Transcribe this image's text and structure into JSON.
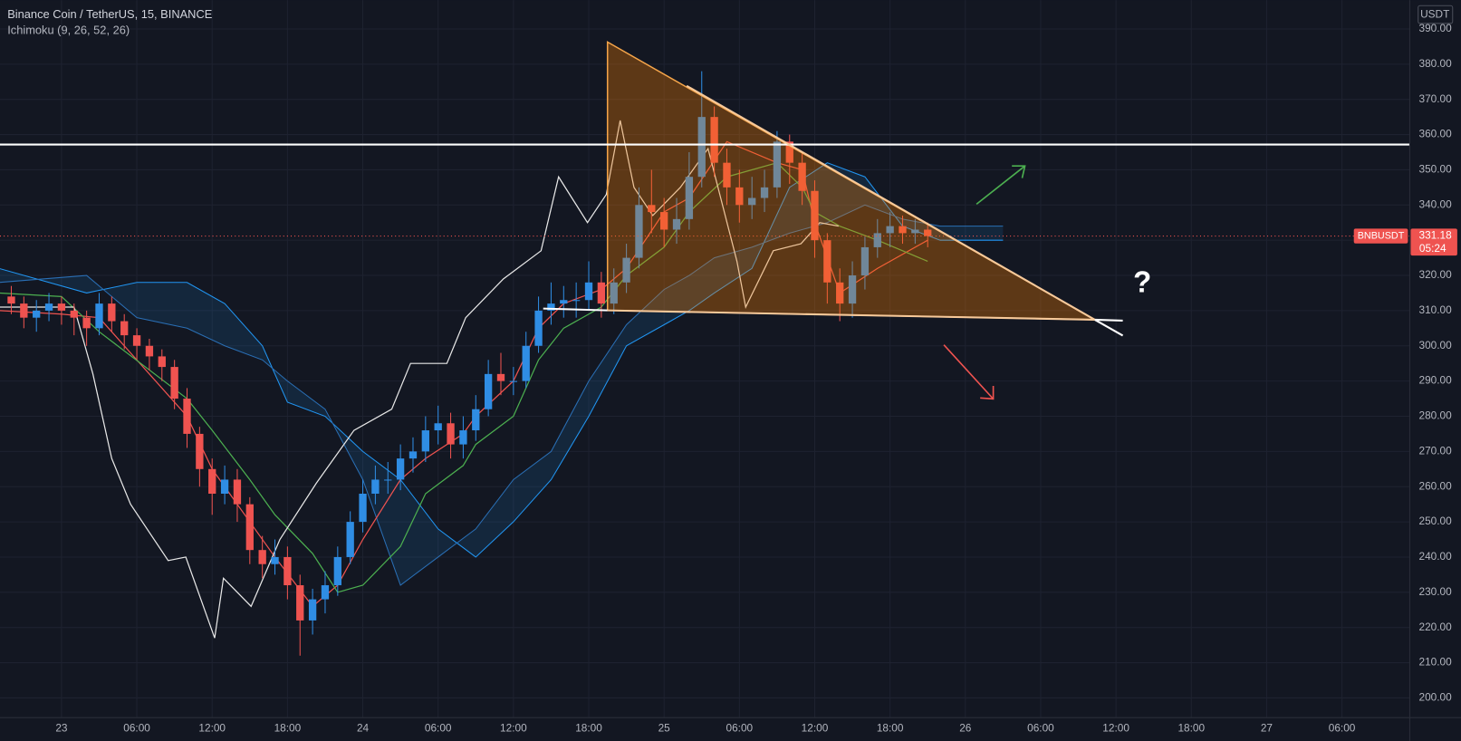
{
  "chart_data": {
    "type": "candlestick",
    "title": "Binance Coin / TetherUS, 15, BINANCE",
    "subtitle": "Ichimoku (9, 26, 52, 26)",
    "currency": "USDT",
    "symbol": "BNBUSDT",
    "countdown": "05:24",
    "question": "?",
    "last_price": 331.18,
    "last_price_color": "#ef5350",
    "up_color": "#2f8de4",
    "down_color": "#ef5350",
    "grid": true,
    "xlim": [
      -4.9,
      107.4
    ],
    "ylim": [
      194.4,
      398.2
    ],
    "xticks": [
      {
        "value": 0,
        "label": "23"
      },
      {
        "value": 6,
        "label": "06:00"
      },
      {
        "value": 12,
        "label": "12:00"
      },
      {
        "value": 18,
        "label": "18:00"
      },
      {
        "value": 24,
        "label": "24"
      },
      {
        "value": 30,
        "label": "06:00"
      },
      {
        "value": 36,
        "label": "12:00"
      },
      {
        "value": 42,
        "label": "18:00"
      },
      {
        "value": 48,
        "label": "25"
      },
      {
        "value": 54,
        "label": "06:00"
      },
      {
        "value": 60,
        "label": "12:00"
      },
      {
        "value": 66,
        "label": "18:00"
      },
      {
        "value": 72,
        "label": "26"
      },
      {
        "value": 78,
        "label": "06:00"
      },
      {
        "value": 84,
        "label": "12:00"
      },
      {
        "value": 90,
        "label": "18:00"
      },
      {
        "value": 96,
        "label": "27"
      },
      {
        "value": 102,
        "label": "06:00"
      }
    ],
    "yticks": [
      {
        "value": 200,
        "label": "200.00"
      },
      {
        "value": 210,
        "label": "210.00"
      },
      {
        "value": 220,
        "label": "220.00"
      },
      {
        "value": 230,
        "label": "230.00"
      },
      {
        "value": 240,
        "label": "240.00"
      },
      {
        "value": 250,
        "label": "250.00"
      },
      {
        "value": 260,
        "label": "260.00"
      },
      {
        "value": 270,
        "label": "270.00"
      },
      {
        "value": 280,
        "label": "280.00"
      },
      {
        "value": 290,
        "label": "290.00"
      },
      {
        "value": 300,
        "label": "300.00"
      },
      {
        "value": 310,
        "label": "310.00"
      },
      {
        "value": 320,
        "label": "320.00"
      },
      {
        "value": 330,
        "label": "330.00"
      },
      {
        "value": 340,
        "label": "340.00"
      },
      {
        "value": 350,
        "label": "350.00"
      },
      {
        "value": 360,
        "label": "360.00"
      },
      {
        "value": 370,
        "label": "370.00"
      },
      {
        "value": 380,
        "label": "380.00"
      },
      {
        "value": 390,
        "label": "390.00"
      }
    ],
    "candles": {
      "x": [
        -4,
        -3,
        -2,
        -1,
        0,
        1,
        2,
        3,
        4,
        5,
        6,
        7,
        8,
        9,
        10,
        11,
        12,
        13,
        14,
        15,
        16,
        17,
        18,
        19,
        20,
        21,
        22,
        23,
        24,
        25,
        26,
        27,
        28,
        29,
        30,
        31,
        32,
        33,
        34,
        35,
        36,
        37,
        38,
        39,
        40,
        41,
        42,
        43,
        44,
        45,
        46,
        47,
        48,
        49,
        50,
        51,
        52,
        53,
        54,
        55,
        56,
        57,
        58,
        59,
        60,
        61,
        62,
        63,
        64,
        65,
        66,
        67,
        68,
        69
      ],
      "open": [
        314,
        312,
        308,
        310,
        312,
        310,
        308,
        305,
        312,
        307,
        303,
        300,
        297,
        294,
        285,
        275,
        265,
        258,
        262,
        255,
        242,
        238,
        240,
        232,
        222,
        228,
        232,
        240,
        250,
        258,
        262,
        262,
        268,
        270,
        276,
        278,
        272,
        276,
        282,
        292,
        290,
        290,
        300,
        310,
        312,
        313,
        313,
        318,
        312,
        318,
        325,
        340,
        338,
        333,
        336,
        348,
        365,
        352,
        345,
        340,
        342,
        345,
        358,
        352,
        344,
        330,
        318,
        312,
        320,
        328,
        332,
        334,
        332,
        333
      ],
      "high": [
        317,
        314,
        313,
        315,
        314,
        312,
        310,
        315,
        314,
        309,
        305,
        302,
        299,
        296,
        288,
        277,
        268,
        266,
        265,
        257,
        246,
        245,
        243,
        235,
        231,
        236,
        243,
        253,
        262,
        266,
        267,
        272,
        274,
        280,
        283,
        281,
        280,
        286,
        296,
        298,
        294,
        304,
        314,
        318,
        317,
        318,
        324,
        321,
        322,
        329,
        345,
        350,
        342,
        342,
        355,
        378,
        368,
        356,
        350,
        348,
        350,
        361,
        360,
        355,
        347,
        332,
        322,
        324,
        331,
        336,
        338,
        337,
        336,
        335
      ],
      "low": [
        309,
        305,
        304,
        307,
        306,
        303,
        300,
        303,
        304,
        299,
        296,
        293,
        290,
        282,
        271,
        260,
        252,
        255,
        250,
        238,
        234,
        235,
        228,
        212,
        218,
        224,
        229,
        238,
        247,
        255,
        258,
        259,
        264,
        267,
        272,
        268,
        268,
        273,
        280,
        286,
        286,
        288,
        298,
        306,
        308,
        308,
        310,
        308,
        309,
        315,
        322,
        332,
        328,
        329,
        333,
        345,
        348,
        340,
        335,
        336,
        338,
        342,
        346,
        340,
        325,
        312,
        307,
        308,
        316,
        325,
        328,
        329,
        329,
        328
      ],
      "close": [
        312,
        308,
        310,
        312,
        310,
        308,
        305,
        312,
        307,
        303,
        300,
        297,
        294,
        285,
        275,
        265,
        258,
        262,
        255,
        242,
        238,
        240,
        232,
        222,
        228,
        232,
        240,
        250,
        258,
        262,
        262,
        268,
        270,
        276,
        278,
        272,
        276,
        282,
        292,
        290,
        290,
        300,
        310,
        312,
        313,
        313,
        318,
        312,
        318,
        325,
        340,
        338,
        333,
        336,
        348,
        365,
        352,
        345,
        340,
        342,
        345,
        358,
        352,
        344,
        330,
        318,
        312,
        320,
        328,
        332,
        334,
        332,
        333,
        331.18
      ]
    },
    "lines": [
      {
        "color": "#ef5350",
        "x": [
          -5,
          0,
          3,
          10,
          12,
          15,
          17,
          20,
          22,
          24,
          27,
          29,
          32,
          33,
          36,
          38,
          40,
          43,
          45,
          48,
          50,
          53,
          57,
          59,
          60,
          62,
          65,
          69
        ],
        "values": [
          310,
          309,
          308,
          280,
          265,
          250,
          240,
          226,
          232,
          245,
          262,
          268,
          275,
          280,
          290,
          305,
          312,
          316,
          322,
          338,
          342,
          358,
          352,
          350,
          335,
          315,
          322,
          330
        ]
      },
      {
        "color": "#4caf50",
        "x": [
          -5,
          0,
          3,
          10,
          12,
          15,
          17,
          20,
          22,
          24,
          27,
          29,
          32,
          33,
          36,
          38,
          40,
          43,
          45,
          48,
          50,
          53,
          57,
          59,
          60,
          62,
          65,
          69
        ],
        "values": [
          315,
          314,
          304,
          285,
          276,
          262,
          252,
          241,
          230,
          232,
          243,
          258,
          266,
          272,
          280,
          296,
          305,
          311,
          320,
          328,
          338,
          348,
          352,
          345,
          338,
          334,
          330,
          324
        ]
      },
      {
        "color": "#e8e8e8",
        "x": [
          -4.9,
          1.0,
          2.5,
          4.0,
          5.5,
          8.5,
          9.9,
          12.2,
          12.9,
          15.1,
          17.4,
          20.3,
          23.3,
          26.3,
          27.8,
          30.7,
          32.2,
          35.2,
          38.2,
          39.6,
          41.9,
          43.4,
          44.5,
          45.6,
          47.1,
          49.3,
          51.5,
          53.8,
          54.5,
          56.7,
          58.9,
          60.4,
          61.9
        ],
        "values": [
          311,
          311,
          292,
          268,
          255,
          239,
          240,
          217,
          234,
          226,
          245,
          261,
          276,
          282,
          295,
          295,
          308,
          319,
          327,
          348,
          335,
          343,
          364,
          345,
          337,
          345,
          356,
          324,
          311,
          327,
          329,
          335,
          334
        ]
      }
    ],
    "cloud": {
      "color": "rgba(33,150,243,0.13)",
      "span_a_color": "#2196f3",
      "span_b_color": "#2a6fb5",
      "x": [
        -5,
        2,
        6,
        10,
        13,
        16,
        18,
        21,
        24,
        27,
        30,
        33,
        36,
        39,
        42,
        45,
        48,
        50,
        52,
        55,
        58,
        61,
        64,
        67,
        70,
        75
      ],
      "span_a": [
        322,
        315,
        318,
        318,
        312,
        300,
        284,
        280,
        270,
        262,
        248,
        240,
        250,
        262,
        280,
        300,
        306,
        310,
        315,
        322,
        345,
        352,
        348,
        334,
        330,
        330
      ],
      "span_b": [
        318,
        320,
        308,
        305,
        300,
        296,
        290,
        282,
        262,
        232,
        240,
        248,
        262,
        270,
        290,
        306,
        316,
        320,
        325,
        328,
        332,
        335,
        340,
        336,
        334,
        334
      ]
    }
  }
}
